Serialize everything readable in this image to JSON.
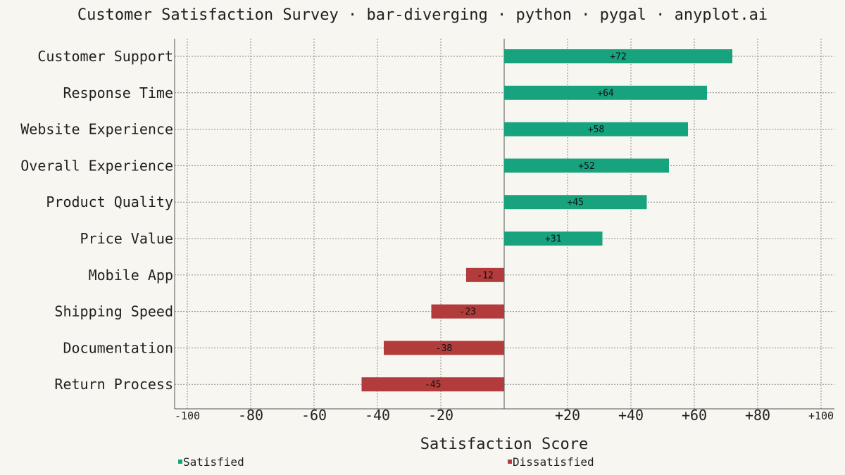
{
  "chart_data": {
    "type": "bar",
    "orientation": "horizontal-diverging",
    "title": "Customer Satisfaction Survey · bar-diverging · python · pygal · anyplot.ai",
    "xlabel": "Satisfaction Score",
    "ylabel": "",
    "xlim": [
      -100,
      100
    ],
    "categories": [
      "Customer Support",
      "Response Time",
      "Website Experience",
      "Overall Experience",
      "Product Quality",
      "Price Value",
      "Mobile App",
      "Shipping Speed",
      "Documentation",
      "Return Process"
    ],
    "values": [
      72,
      64,
      58,
      52,
      45,
      31,
      -12,
      -23,
      -38,
      -45
    ],
    "value_labels": [
      "+72",
      "+64",
      "+58",
      "+52",
      "+45",
      "+31",
      "-12",
      "-23",
      "-38",
      "-45"
    ],
    "x_ticks": [
      {
        "value": -100,
        "label": "-100",
        "major": false
      },
      {
        "value": -80,
        "label": "-80",
        "major": true
      },
      {
        "value": -60,
        "label": "-60",
        "major": true
      },
      {
        "value": -40,
        "label": "-40",
        "major": true
      },
      {
        "value": -20,
        "label": "-20",
        "major": true
      },
      {
        "value": 20,
        "label": "+20",
        "major": true
      },
      {
        "value": 40,
        "label": "+40",
        "major": true
      },
      {
        "value": 60,
        "label": "+60",
        "major": true
      },
      {
        "value": 80,
        "label": "+80",
        "major": true
      },
      {
        "value": 100,
        "label": "+100",
        "major": false
      }
    ],
    "series": [
      {
        "name": "Satisfied",
        "color": "#17a37e"
      },
      {
        "name": "Dissatisfied",
        "color": "#b23b3b"
      }
    ],
    "grid": true,
    "legend_position": "bottom"
  }
}
